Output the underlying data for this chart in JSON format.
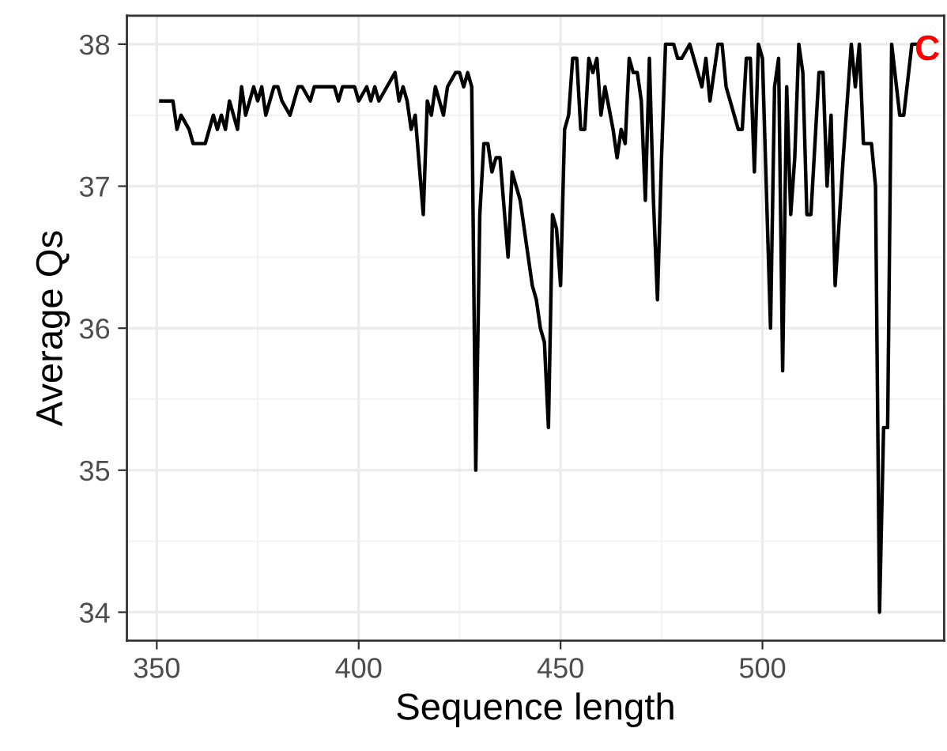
{
  "chart_data": {
    "type": "line",
    "xlabel": "Sequence length",
    "ylabel": "Average Qs",
    "annotations": [
      "C"
    ],
    "x": [
      351,
      354,
      355,
      356,
      358,
      359,
      360,
      362,
      364,
      365,
      366,
      367,
      368,
      370,
      371,
      372,
      374,
      375,
      376,
      377,
      378,
      379,
      380,
      381,
      383,
      385,
      386,
      388,
      389,
      394,
      395,
      396,
      399,
      400,
      402,
      403,
      404,
      405,
      407,
      409,
      410,
      411,
      412,
      413,
      414,
      416,
      417,
      418,
      419,
      421,
      422,
      424,
      425,
      426,
      427,
      428,
      429,
      430,
      431,
      432,
      433,
      434,
      435,
      437,
      438,
      440,
      441,
      443,
      444,
      445,
      446,
      447,
      448,
      449,
      450,
      451,
      452,
      453,
      454,
      455,
      456,
      457,
      458,
      459,
      460,
      461,
      463,
      464,
      465,
      466,
      467,
      468,
      469,
      470,
      471,
      472,
      473,
      474,
      475,
      476,
      478,
      479,
      480,
      482,
      483,
      485,
      486,
      487,
      489,
      490,
      491,
      492,
      494,
      495,
      496,
      497,
      498,
      499,
      500,
      502,
      503,
      504,
      505,
      506,
      507,
      508,
      509,
      510,
      511,
      512,
      514,
      515,
      516,
      517,
      518,
      520,
      522,
      523,
      524,
      525,
      527,
      528,
      529,
      530,
      531,
      532,
      534,
      535,
      537,
      538
    ],
    "values": [
      37.6,
      37.6,
      37.4,
      37.5,
      37.4,
      37.3,
      37.3,
      37.3,
      37.5,
      37.4,
      37.5,
      37.4,
      37.6,
      37.4,
      37.7,
      37.5,
      37.7,
      37.6,
      37.7,
      37.5,
      37.6,
      37.7,
      37.7,
      37.6,
      37.5,
      37.7,
      37.7,
      37.6,
      37.7,
      37.7,
      37.6,
      37.7,
      37.7,
      37.6,
      37.7,
      37.6,
      37.7,
      37.6,
      37.7,
      37.8,
      37.6,
      37.7,
      37.6,
      37.4,
      37.5,
      36.8,
      37.6,
      37.5,
      37.7,
      37.5,
      37.7,
      37.8,
      37.8,
      37.7,
      37.8,
      37.7,
      35.0,
      36.8,
      37.3,
      37.3,
      37.1,
      37.2,
      37.2,
      36.5,
      37.1,
      36.9,
      36.7,
      36.3,
      36.2,
      36.0,
      35.9,
      35.3,
      36.8,
      36.7,
      36.3,
      37.4,
      37.5,
      37.9,
      37.9,
      37.4,
      37.4,
      37.9,
      37.8,
      37.9,
      37.5,
      37.7,
      37.4,
      37.2,
      37.4,
      37.3,
      37.9,
      37.8,
      37.8,
      37.6,
      36.9,
      37.9,
      36.9,
      36.2,
      37.2,
      38.0,
      38.0,
      37.9,
      37.9,
      38.0,
      37.9,
      37.7,
      37.9,
      37.6,
      38.0,
      38.0,
      37.7,
      37.6,
      37.4,
      37.4,
      37.9,
      37.9,
      37.1,
      38.0,
      37.9,
      36.0,
      37.7,
      37.9,
      35.7,
      37.7,
      36.8,
      37.2,
      38.0,
      37.8,
      36.8,
      36.8,
      37.8,
      37.8,
      37.0,
      37.5,
      36.3,
      37.2,
      38.0,
      37.7,
      38.0,
      37.3,
      37.3,
      37.0,
      34.0,
      35.3,
      35.3,
      38.0,
      37.5,
      37.5,
      38.0,
      38.0
    ],
    "color": "#000000",
    "xlim": [
      342.6,
      545
    ],
    "ylim": [
      33.8,
      38.2
    ],
    "xticks": [
      350,
      400,
      450,
      500
    ],
    "yticks": [
      34,
      35,
      36,
      37,
      38
    ],
    "grid": true
  }
}
